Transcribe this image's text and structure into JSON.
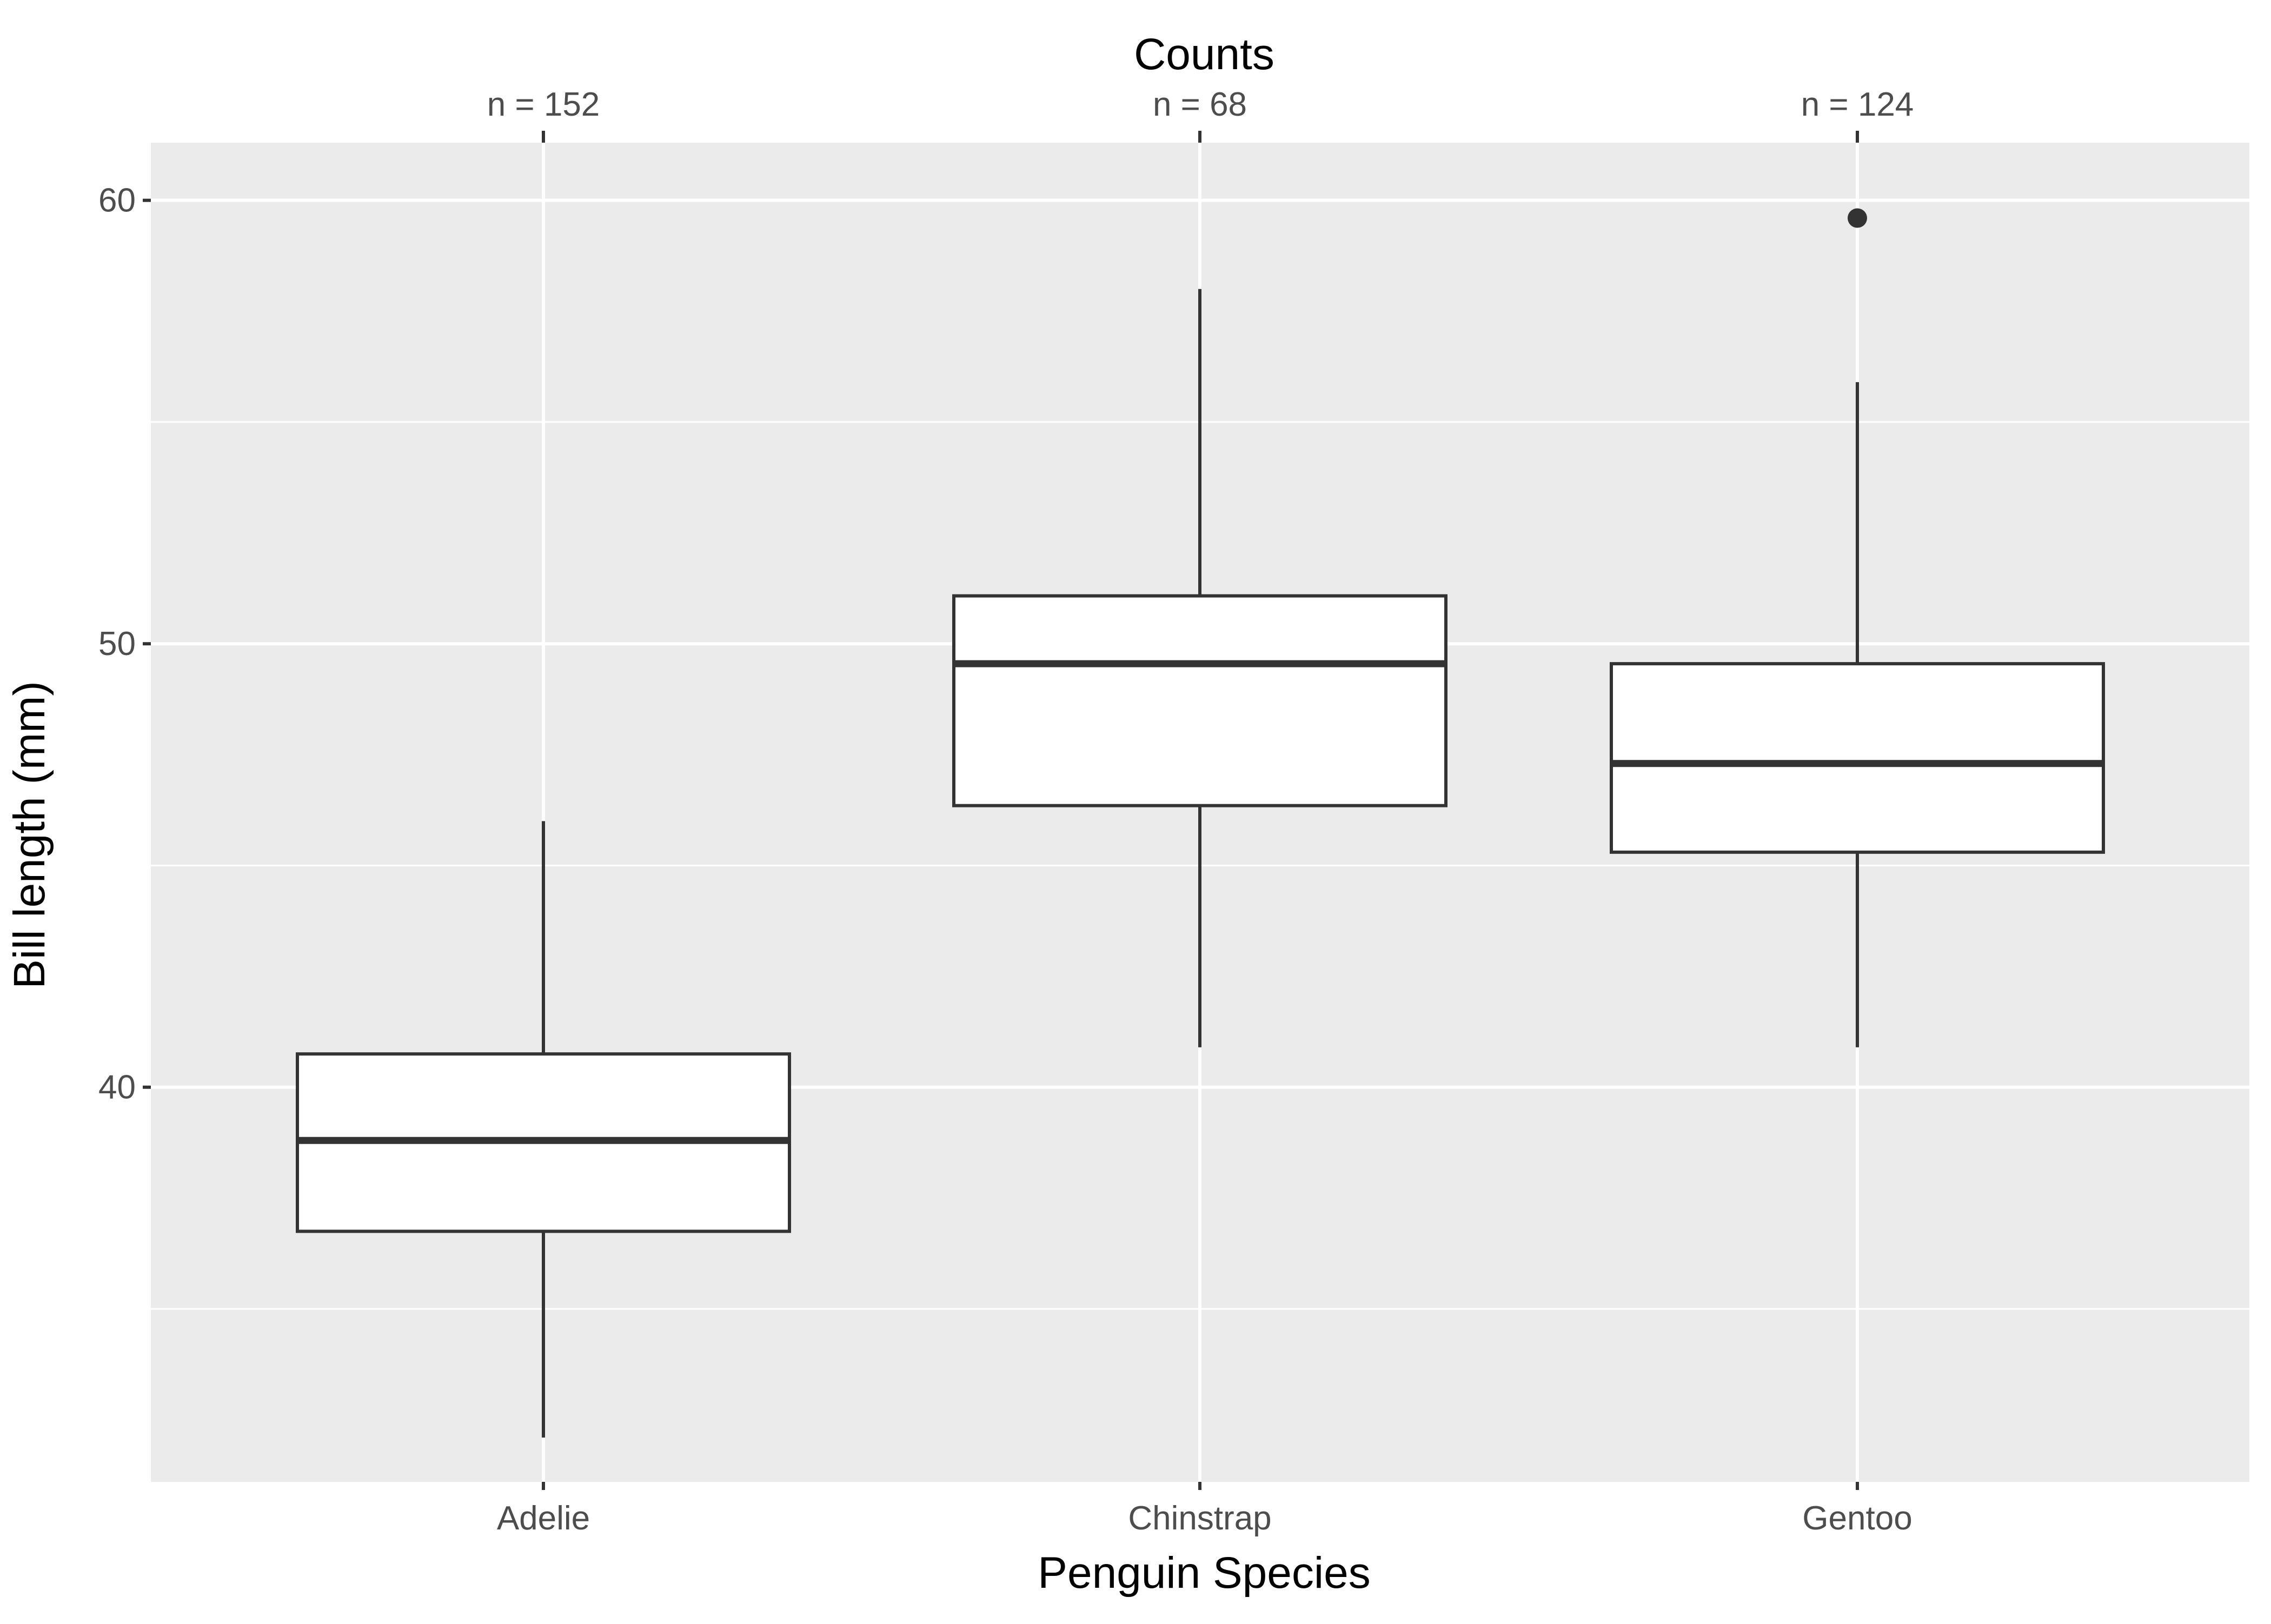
{
  "chart_data": {
    "type": "boxplot",
    "title": "",
    "xlabel": "Penguin Species",
    "ylabel": "Bill length (mm)",
    "secondary_axis_title": "Counts",
    "ylim": [
      31.1,
      61.3
    ],
    "yticks": [
      40,
      50,
      60
    ],
    "grid": true,
    "categories": [
      "Adelie",
      "Chinstrap",
      "Gentoo"
    ],
    "counts": [
      "n = 152",
      "n = 68",
      "n = 124"
    ],
    "boxes": [
      {
        "category": "Adelie",
        "whisker_low": 32.1,
        "q1": 36.75,
        "median": 38.8,
        "q3": 40.75,
        "whisker_high": 46.0,
        "outliers": []
      },
      {
        "category": "Chinstrap",
        "whisker_low": 40.9,
        "q1": 46.35,
        "median": 49.55,
        "q3": 51.08,
        "whisker_high": 58.0,
        "outliers": []
      },
      {
        "category": "Gentoo",
        "whisker_low": 40.9,
        "q1": 45.3,
        "median": 47.3,
        "q3": 49.55,
        "whisker_high": 55.9,
        "outliers": [
          59.6
        ]
      }
    ],
    "colors": {
      "panel_background": "#ebebeb",
      "grid": "#ffffff",
      "box_fill": "#ffffff",
      "box_line": "#333333",
      "tick_text": "#4d4d4d",
      "title_text": "#000000"
    }
  }
}
